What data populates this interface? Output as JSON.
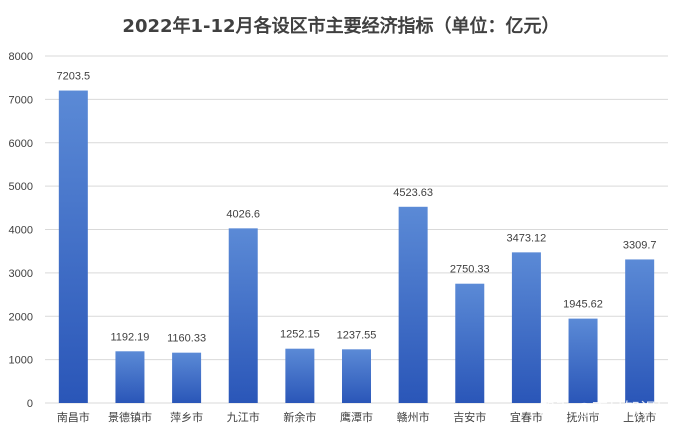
{
  "chart_data": {
    "type": "bar",
    "title": "2022年1-12月各设区市主要经济指标（单位：亿元）",
    "categories": [
      "南昌市",
      "景德镇市",
      "萍乡市",
      "九江市",
      "新余市",
      "鹰潭市",
      "赣州市",
      "吉安市",
      "宜春市",
      "抚州市",
      "上饶市"
    ],
    "values": [
      7203.5,
      1192.19,
      1160.33,
      4026.6,
      1252.15,
      1237.55,
      4523.63,
      2750.33,
      3473.12,
      1945.62,
      3309.7
    ],
    "value_labels": [
      "7203.5",
      "1192.19",
      "1160.33",
      "4026.6",
      "1252.15",
      "1237.55",
      "4523.63",
      "2750.33",
      "3473.12",
      "1945.62",
      "3309.7"
    ],
    "ylim": [
      0,
      8000
    ],
    "yticks": [
      0,
      1000,
      2000,
      3000,
      4000,
      5000,
      6000,
      7000,
      8000
    ],
    "grid": true,
    "colors": {
      "bar_top": "#5b8ad6",
      "bar_bottom": "#2a56b8",
      "grid": "#d9d9d9",
      "text": "#404040"
    }
  },
  "watermark": "知乎 @南昌知识局"
}
